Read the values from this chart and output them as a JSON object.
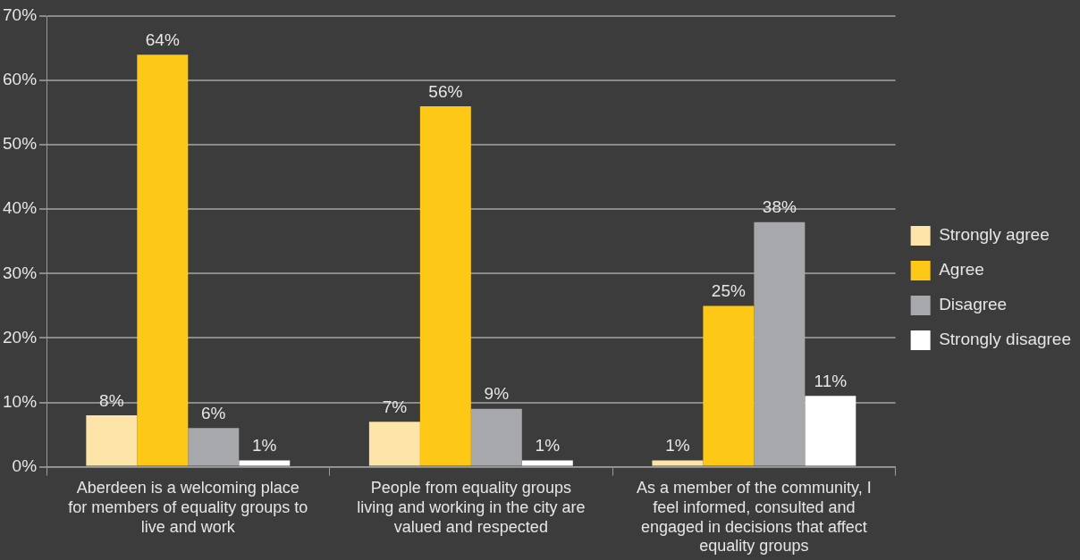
{
  "chart_data": {
    "type": "bar",
    "categories": [
      "Aberdeen is a welcoming place for members of equality groups to live and work",
      "People from equality groups living and working in the city are valued and respected",
      "As a member of the community, I feel informed, consulted and engaged in decisions that affect equality groups"
    ],
    "series": [
      {
        "name": "Strongly agree",
        "color": "#fde4a8",
        "values": [
          8,
          7,
          1
        ],
        "value_labels": [
          "8%",
          "7%",
          "1%"
        ]
      },
      {
        "name": "Agree",
        "color": "#fdc816",
        "values": [
          64,
          56,
          25
        ],
        "value_labels": [
          "64%",
          "56%",
          "25%"
        ]
      },
      {
        "name": "Disagree",
        "color": "#a7a8ab",
        "values": [
          6,
          9,
          38
        ],
        "value_labels": [
          "6%",
          "9%",
          "38%"
        ]
      },
      {
        "name": "Strongly disagree",
        "color": "#ffffff",
        "values": [
          1,
          1,
          11
        ],
        "value_labels": [
          "1%",
          "1%",
          "11%"
        ]
      }
    ],
    "ylim": [
      0,
      70
    ],
    "yticks": [
      {
        "value": 0,
        "label": "0%"
      },
      {
        "value": 10,
        "label": "10%"
      },
      {
        "value": 20,
        "label": "20%"
      },
      {
        "value": 30,
        "label": "30%"
      },
      {
        "value": 40,
        "label": "40%"
      },
      {
        "value": 50,
        "label": "50%"
      },
      {
        "value": 60,
        "label": "60%"
      },
      {
        "value": 70,
        "label": "70%"
      }
    ],
    "grid": "y",
    "legend": "right"
  }
}
